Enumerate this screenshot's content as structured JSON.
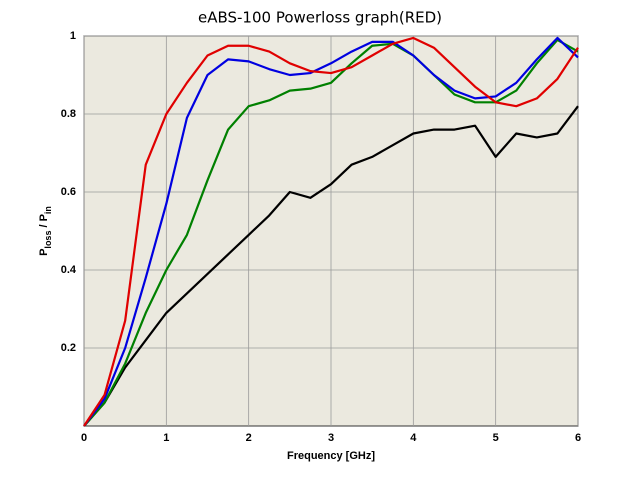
{
  "chart_data": {
    "type": "line",
    "title": "eABS-100 Powerloss graph(RED)",
    "xlabel": "Frequency [GHz]",
    "ylabel": [
      "P",
      "loss",
      "/ P",
      "in"
    ],
    "x": [
      0,
      0.25,
      0.5,
      0.75,
      1,
      1.25,
      1.5,
      1.75,
      2,
      2.25,
      2.5,
      2.75,
      3,
      3.25,
      3.5,
      3.75,
      4,
      4.25,
      4.5,
      4.75,
      5,
      5.25,
      5.5,
      5.75,
      6
    ],
    "series": [
      {
        "color": "#000000",
        "values": [
          0,
          0.06,
          0.15,
          0.22,
          0.29,
          0.34,
          0.39,
          0.44,
          0.49,
          0.54,
          0.6,
          0.585,
          0.62,
          0.67,
          0.69,
          0.72,
          0.75,
          0.76,
          0.76,
          0.77,
          0.69,
          0.75,
          0.74,
          0.75,
          0.82
        ]
      },
      {
        "color": "#008000",
        "values": [
          0,
          0.06,
          0.16,
          0.29,
          0.4,
          0.49,
          0.63,
          0.76,
          0.82,
          0.835,
          0.86,
          0.865,
          0.88,
          0.93,
          0.975,
          0.98,
          0.95,
          0.9,
          0.85,
          0.83,
          0.83,
          0.86,
          0.93,
          0.99,
          0.96
        ]
      },
      {
        "color": "#0000e0",
        "values": [
          0,
          0.07,
          0.2,
          0.38,
          0.57,
          0.79,
          0.9,
          0.94,
          0.935,
          0.915,
          0.9,
          0.905,
          0.93,
          0.96,
          0.985,
          0.985,
          0.95,
          0.9,
          0.86,
          0.84,
          0.845,
          0.88,
          0.94,
          0.995,
          0.945
        ]
      },
      {
        "color": "#e00000",
        "values": [
          0,
          0.08,
          0.27,
          0.67,
          0.8,
          0.88,
          0.95,
          0.975,
          0.975,
          0.96,
          0.93,
          0.91,
          0.905,
          0.92,
          0.95,
          0.98,
          0.995,
          0.97,
          0.92,
          0.87,
          0.83,
          0.82,
          0.84,
          0.89,
          0.97
        ]
      }
    ],
    "xlim": [
      0,
      6
    ],
    "xticks": [
      0,
      1,
      2,
      3,
      4,
      5,
      6
    ],
    "ylim": [
      0,
      1
    ],
    "yticks": [
      0.2,
      0.4,
      0.6,
      0.8,
      1
    ],
    "grid": true
  }
}
